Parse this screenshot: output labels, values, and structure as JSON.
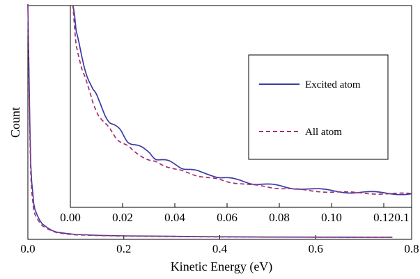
{
  "chart_data": {
    "type": "line",
    "xlabel": "Kinetic Energy (eV)",
    "ylabel": "Count",
    "xlim": [
      0.0,
      0.8
    ],
    "xticks": [
      "0.0",
      "0.2",
      "0.4",
      "0.6",
      "0.8"
    ],
    "grid": false,
    "legend_position": "inside inset, right",
    "series": [
      {
        "name": "Excited atom",
        "style": "solid",
        "color": "#3a3aa6",
        "x": [
          0.0,
          0.002,
          0.004,
          0.006,
          0.008,
          0.01,
          0.012,
          0.015,
          0.02,
          0.025,
          0.03,
          0.04,
          0.05,
          0.06,
          0.08,
          0.1,
          0.15,
          0.2,
          0.3,
          0.4,
          0.5,
          0.6,
          0.7,
          0.76
        ],
        "y": [
          1.0,
          0.75,
          0.5,
          0.32,
          0.24,
          0.2,
          0.15,
          0.12,
          0.095,
          0.075,
          0.06,
          0.045,
          0.032,
          0.025,
          0.019,
          0.015,
          0.011,
          0.009,
          0.007,
          0.005,
          0.004,
          0.0035,
          0.003,
          0.003
        ]
      },
      {
        "name": "All atom",
        "style": "dashed",
        "color": "#a0306e",
        "x": [
          0.0,
          0.002,
          0.004,
          0.006,
          0.008,
          0.01,
          0.012,
          0.015,
          0.02,
          0.025,
          0.03,
          0.04,
          0.05,
          0.06,
          0.08,
          0.1,
          0.15,
          0.2,
          0.3,
          0.4,
          0.5,
          0.6,
          0.7,
          0.76
        ],
        "y": [
          1.0,
          0.7,
          0.45,
          0.28,
          0.2,
          0.16,
          0.12,
          0.1,
          0.08,
          0.065,
          0.052,
          0.04,
          0.03,
          0.023,
          0.017,
          0.013,
          0.01,
          0.008,
          0.006,
          0.0045,
          0.0037,
          0.0032,
          0.0028,
          0.0028
        ]
      }
    ],
    "inset": {
      "xlim": [
        0.0,
        0.12
      ],
      "xticks": [
        "0.00",
        "0.02",
        "0.04",
        "0.06",
        "0.08",
        "0.10",
        "0.12",
        "0.1"
      ],
      "series": [
        {
          "name": "Excited atom",
          "x": [
            0.0,
            0.002,
            0.004,
            0.006,
            0.008,
            0.01,
            0.012,
            0.014,
            0.016,
            0.018,
            0.02,
            0.022,
            0.025,
            0.028,
            0.03,
            0.032,
            0.035,
            0.038,
            0.04,
            0.043,
            0.046,
            0.05,
            0.053,
            0.056,
            0.06,
            0.064,
            0.068,
            0.072,
            0.076,
            0.08,
            0.085,
            0.09,
            0.095,
            0.1,
            0.105,
            0.11,
            0.115,
            0.12,
            0.13
          ],
          "y": [
            1.0,
            0.74,
            0.66,
            0.58,
            0.5,
            0.45,
            0.41,
            0.37,
            0.34,
            0.32,
            0.29,
            0.27,
            0.25,
            0.23,
            0.21,
            0.2,
            0.19,
            0.175,
            0.165,
            0.155,
            0.145,
            0.135,
            0.125,
            0.118,
            0.11,
            0.1,
            0.095,
            0.088,
            0.082,
            0.078,
            0.072,
            0.068,
            0.064,
            0.06,
            0.058,
            0.056,
            0.055,
            0.054,
            0.054
          ]
        },
        {
          "name": "All atom",
          "x": [
            0.0,
            0.002,
            0.004,
            0.006,
            0.008,
            0.01,
            0.012,
            0.014,
            0.016,
            0.018,
            0.02,
            0.022,
            0.025,
            0.028,
            0.03,
            0.032,
            0.035,
            0.038,
            0.04,
            0.043,
            0.046,
            0.05,
            0.053,
            0.056,
            0.06,
            0.064,
            0.068,
            0.072,
            0.076,
            0.08,
            0.085,
            0.09,
            0.095,
            0.1,
            0.105,
            0.11,
            0.115,
            0.12,
            0.13
          ],
          "y": [
            1.0,
            0.72,
            0.6,
            0.52,
            0.45,
            0.4,
            0.36,
            0.33,
            0.3,
            0.28,
            0.26,
            0.24,
            0.22,
            0.2,
            0.19,
            0.18,
            0.17,
            0.158,
            0.148,
            0.138,
            0.13,
            0.12,
            0.112,
            0.105,
            0.098,
            0.09,
            0.085,
            0.08,
            0.075,
            0.071,
            0.066,
            0.063,
            0.06,
            0.057,
            0.055,
            0.054,
            0.053,
            0.053,
            0.053
          ]
        }
      ]
    }
  }
}
